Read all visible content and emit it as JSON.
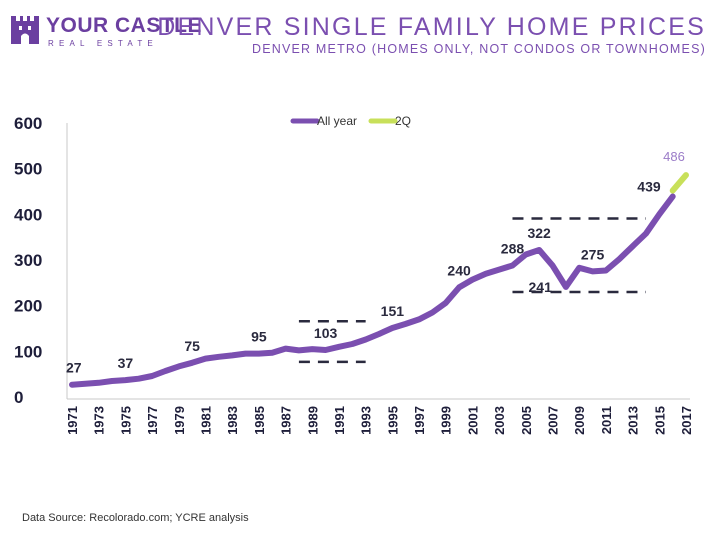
{
  "brand": {
    "name": "YOUR CASTLE",
    "tagline": "REAL ESTATE",
    "color": "#6b3fa0",
    "icon": "castle-icon"
  },
  "footer": {
    "source": "Data Source: Recolorado.com; YCRE analysis"
  },
  "chart_data": {
    "type": "line",
    "title": "DENVER SINGLE FAMILY HOME PRICES",
    "subtitle": "DENVER METRO (HOMES ONLY, NOT CONDOS OR TOWNHOMES)",
    "xlabel": "",
    "ylabel": "",
    "ylim": [
      0,
      600
    ],
    "yticks": [
      0,
      100,
      200,
      300,
      400,
      500,
      600
    ],
    "xlim": [
      1971,
      2017
    ],
    "xticks": [
      1971,
      1973,
      1975,
      1977,
      1979,
      1981,
      1983,
      1985,
      1987,
      1989,
      1991,
      1993,
      1995,
      1997,
      1999,
      2001,
      2003,
      2005,
      2007,
      2009,
      2011,
      2013,
      2015,
      2017
    ],
    "grid": false,
    "legend_position": "top-center",
    "series": [
      {
        "name": "All year",
        "color": "#7b4fb0",
        "x": [
          1971,
          1972,
          1973,
          1974,
          1975,
          1976,
          1977,
          1978,
          1979,
          1980,
          1981,
          1982,
          1983,
          1984,
          1985,
          1986,
          1987,
          1988,
          1989,
          1990,
          1991,
          1992,
          1993,
          1994,
          1995,
          1996,
          1997,
          1998,
          1999,
          2000,
          2001,
          2002,
          2003,
          2004,
          2005,
          2006,
          2007,
          2008,
          2009,
          2010,
          2011,
          2012,
          2013,
          2014,
          2015,
          2016
        ],
        "values": [
          27,
          29,
          31,
          35,
          37,
          40,
          46,
          57,
          67,
          75,
          84,
          88,
          91,
          95,
          95,
          97,
          106,
          102,
          105,
          103,
          110,
          116,
          126,
          138,
          151,
          160,
          170,
          185,
          206,
          240,
          257,
          270,
          279,
          288,
          312,
          322,
          288,
          241,
          283,
          275,
          277,
          302,
          330,
          358,
          400,
          439
        ]
      },
      {
        "name": "2Q",
        "color": "#c8e05a",
        "x": [
          2016,
          2017
        ],
        "values": [
          452,
          486
        ]
      }
    ],
    "data_labels": [
      {
        "x": 1971,
        "value": 27,
        "text": "27"
      },
      {
        "x": 1975,
        "value": 37,
        "text": "37"
      },
      {
        "x": 1980,
        "value": 75,
        "text": "75"
      },
      {
        "x": 1985,
        "value": 95,
        "text": "95"
      },
      {
        "x": 1990,
        "value": 103,
        "text": "103"
      },
      {
        "x": 1995,
        "value": 151,
        "text": "151"
      },
      {
        "x": 2000,
        "value": 240,
        "text": "240"
      },
      {
        "x": 2004,
        "value": 288,
        "text": "288"
      },
      {
        "x": 2006,
        "value": 322,
        "text": "322"
      },
      {
        "x": 2008,
        "value": 241,
        "text": "241"
      },
      {
        "x": 2010,
        "value": 275,
        "text": "275"
      },
      {
        "x": 2016,
        "value": 439,
        "text": "439"
      },
      {
        "x": 2017,
        "value": 486,
        "text": "486"
      }
    ],
    "reference_lines": [
      {
        "y": 166,
        "x_start": 1988,
        "x_end": 1993
      },
      {
        "y": 77,
        "x_start": 1988,
        "x_end": 1993
      },
      {
        "y": 391,
        "x_start": 2004,
        "x_end": 2014
      },
      {
        "y": 230,
        "x_start": 2004,
        "x_end": 2014
      }
    ]
  }
}
